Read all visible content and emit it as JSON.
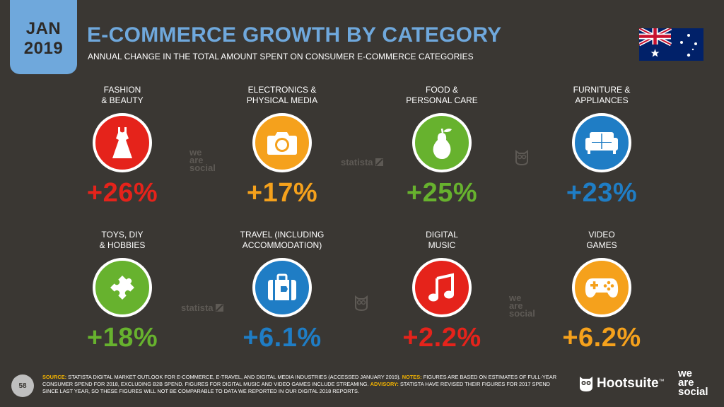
{
  "header": {
    "date_month": "JAN",
    "date_year": "2019",
    "title": "E-COMMERCE GROWTH BY CATEGORY",
    "subtitle": "ANNUAL CHANGE IN THE TOTAL AMOUNT SPENT ON CONSUMER E-COMMERCE CATEGORIES",
    "flag_icon": "australia-flag-icon"
  },
  "categories": [
    {
      "label": "FASHION\n& BEAUTY",
      "value": "+26%",
      "icon": "dress-icon",
      "color": "#e5231b"
    },
    {
      "label": "ELECTRONICS &\nPHYSICAL MEDIA",
      "value": "+17%",
      "icon": "camera-icon",
      "color": "#f5a11c"
    },
    {
      "label": "FOOD &\nPERSONAL CARE",
      "value": "+25%",
      "icon": "pear-icon",
      "color": "#67b22e"
    },
    {
      "label": "FURNITURE &\nAPPLIANCES",
      "value": "+23%",
      "icon": "sofa-icon",
      "color": "#1f7dc5"
    },
    {
      "label": "TOYS, DIY\n& HOBBIES",
      "value": "+18%",
      "icon": "puzzle-icon",
      "color": "#67b22e"
    },
    {
      "label": "TRAVEL (INCLUDING\nACCOMMODATION)",
      "value": "+6.1%",
      "icon": "suitcase-icon",
      "color": "#1f7dc5"
    },
    {
      "label": "DIGITAL\nMUSIC",
      "value": "+2.2%",
      "icon": "music-note-icon",
      "color": "#e5231b"
    },
    {
      "label": "VIDEO\nGAMES",
      "value": "+6.2%",
      "icon": "gamepad-icon",
      "color": "#f5a11c"
    }
  ],
  "watermarks": {
    "we_are_social": "we\nare\nsocial",
    "statista": "statista"
  },
  "footer": {
    "page_number": "58",
    "source_label": "SOURCE:",
    "source_text": "STATISTA DIGITAL MARKET OUTLOOK FOR E-COMMERCE, E-TRAVEL, AND DIGITAL MEDIA INDUSTRIES (ACCESSED JANUARY 2019).",
    "notes_label": "NOTES:",
    "notes_text": "FIGURES ARE BASED ON ESTIMATES OF FULL-YEAR CONSUMER SPEND FOR 2018, EXCLUDING B2B SPEND. FIGURES FOR DIGITAL MUSIC AND VIDEO GAMES INCLUDE STREAMING.",
    "advisory_label": "ADVISORY:",
    "advisory_text": "STATISTA HAVE REVISED THEIR FIGURES FOR 2017 SPEND SINCE LAST YEAR, SO THESE FIGURES WILL NOT BE COMPARABLE TO DATA WE REPORTED IN OUR DIGITAL 2018 REPORTS.",
    "hootsuite": "Hootsuite",
    "hootsuite_tm": "™",
    "we_are_social_logo": "we\nare\nsocial"
  },
  "colors": {
    "background": "#3a3733",
    "accent": "#6fa8dc",
    "footnote_highlight": "#f4b400"
  }
}
